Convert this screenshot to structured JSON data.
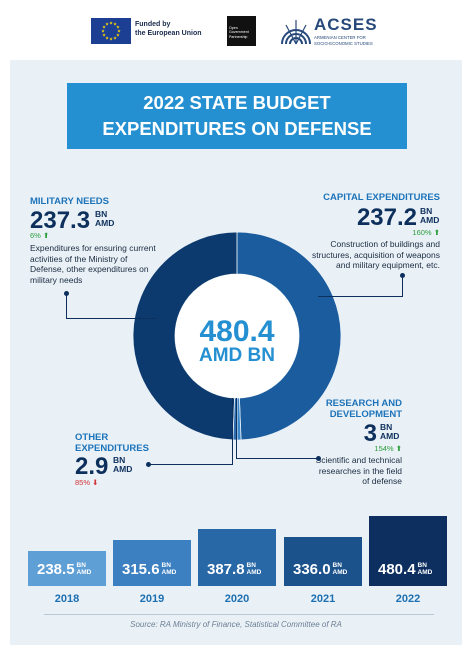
{
  "header": {
    "eu_text": "Funded by\nthe European Union",
    "ogp_text": "Open\nGovernment\nPartnership",
    "acses_name": "ACSES",
    "acses_subtitle": "ARMENIAN CENTER FOR\nSOCIO-ECONOMIC STUDIES"
  },
  "title": {
    "line1": "2022 STATE BUDGET",
    "line2": "EXPENDITURES ON DEFENSE"
  },
  "donut": {
    "total_value": "480.4",
    "total_unit": "AMD BN"
  },
  "segments": {
    "military": {
      "heading": "MILITARY NEEDS",
      "value": "237.3",
      "unit_top": "BN",
      "unit_bottom": "AMD",
      "change": "6%",
      "direction": "up",
      "description": "Expenditures for ensuring current activities of the Ministry of Defense, other expenditures on military needs"
    },
    "capital": {
      "heading": "CAPITAL EXPENDITURES",
      "value": "237.2",
      "unit_top": "BN",
      "unit_bottom": "AMD",
      "change": "160%",
      "direction": "up",
      "description": "Construction of buildings and structures, acquisition of weapons and military equipment, etc."
    },
    "research": {
      "heading_1": "RESEARCH AND",
      "heading_2": "DEVELOPMENT",
      "value": "3",
      "unit_top": "BN",
      "unit_bottom": "AMD",
      "change": "154%",
      "direction": "up",
      "description": "Scientific and technical researches in the field of defense"
    },
    "other": {
      "heading_1": "OTHER",
      "heading_2": "EXPENDITURES",
      "value": "2.9",
      "unit_top": "BN",
      "unit_bottom": "AMD",
      "change": "85%",
      "direction": "down"
    }
  },
  "bar_unit": {
    "top": "BN",
    "bottom": "AMD"
  },
  "source": "Source: RA Ministry of Finance, Statistical Committee of RA",
  "colors": {
    "military": "#0d3a6e",
    "capital": "#1a5c9e",
    "research": "#3a88c9",
    "other": "#2e6eb0",
    "accent": "#2590d1",
    "panel": "#e9f1f7"
  },
  "chart_data": [
    {
      "type": "pie",
      "categories": [
        "MILITARY NEEDS",
        "CAPITAL EXPENDITURES",
        "RESEARCH AND DEVELOPMENT",
        "OTHER EXPENDITURES"
      ],
      "values": [
        237.3,
        237.2,
        3,
        2.9
      ],
      "total": 480.4,
      "unit": "AMD BN"
    },
    {
      "type": "bar",
      "categories": [
        "2018",
        "2019",
        "2020",
        "2021",
        "2022"
      ],
      "values": [
        238.5,
        315.6,
        387.8,
        336.0,
        480.4
      ],
      "value_labels": [
        "238.5",
        "315.6",
        "387.8",
        "336.0",
        "480.4"
      ],
      "unit": "BN AMD",
      "colors": [
        "#5e9fd6",
        "#3c80c2",
        "#2868a6",
        "#1b528c",
        "#0c2f5f"
      ]
    }
  ]
}
